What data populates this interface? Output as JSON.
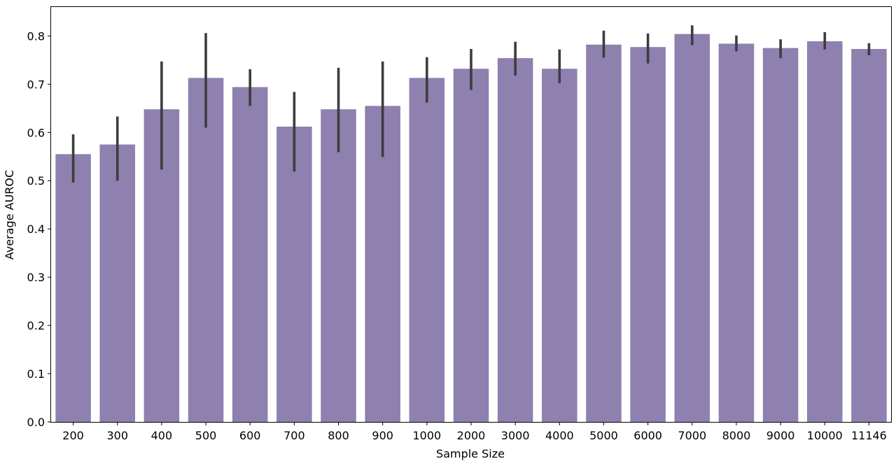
{
  "chart_data": {
    "type": "bar",
    "xlabel": "Sample Size",
    "ylabel": "Average AUROC",
    "ylim": [
      0.0,
      0.86
    ],
    "yticks": [
      0.0,
      0.1,
      0.2,
      0.3,
      0.4,
      0.5,
      0.6,
      0.7,
      0.8
    ],
    "ytick_labels": [
      "0.0",
      "0.1",
      "0.2",
      "0.3",
      "0.4",
      "0.5",
      "0.6",
      "0.7",
      "0.8"
    ],
    "categories": [
      "200",
      "300",
      "400",
      "500",
      "600",
      "700",
      "800",
      "900",
      "1000",
      "2000",
      "3000",
      "4000",
      "5000",
      "6000",
      "7000",
      "8000",
      "9000",
      "10000",
      "11146"
    ],
    "values": [
      0.555,
      0.575,
      0.648,
      0.713,
      0.694,
      0.612,
      0.648,
      0.655,
      0.713,
      0.732,
      0.754,
      0.732,
      0.782,
      0.777,
      0.804,
      0.784,
      0.775,
      0.789,
      0.773
    ],
    "error_low": [
      0.496,
      0.5,
      0.523,
      0.61,
      0.655,
      0.519,
      0.559,
      0.549,
      0.662,
      0.688,
      0.718,
      0.702,
      0.755,
      0.743,
      0.781,
      0.768,
      0.754,
      0.772,
      0.76
    ],
    "error_high": [
      0.596,
      0.633,
      0.747,
      0.806,
      0.731,
      0.684,
      0.734,
      0.747,
      0.756,
      0.773,
      0.788,
      0.772,
      0.811,
      0.805,
      0.822,
      0.801,
      0.793,
      0.808,
      0.785
    ],
    "grid": false,
    "legend": "none",
    "bar_color": "#8e80af",
    "error_color": "#3d3d3d",
    "axis_color": "#000000"
  }
}
